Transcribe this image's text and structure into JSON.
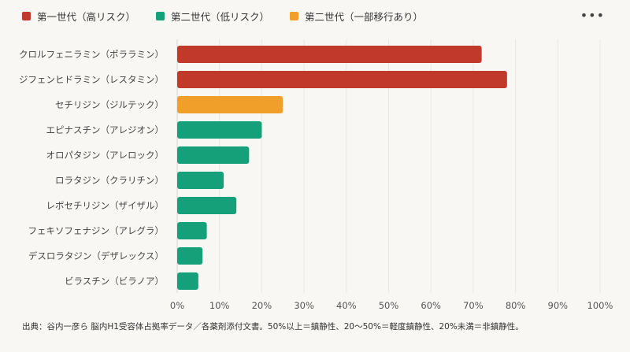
{
  "legend": [
    {
      "label": "第一世代（高リスク）",
      "color": "#c0392b"
    },
    {
      "label": "第二世代（低リスク）",
      "color": "#16a07a"
    },
    {
      "label": "第二世代（一部移行あり）",
      "color": "#f0a02a"
    }
  ],
  "menu_icon": "more-horizontal-icon",
  "chart_data": {
    "type": "bar",
    "orientation": "horizontal",
    "categories": [
      "クロルフェニラミン（ポララミン）",
      "ジフェンヒドラミン（レスタミン）",
      "セチリジン（ジルテック）",
      "エピナスチン（アレジオン）",
      "オロパタジン（アレロック）",
      "ロラタジン（クラリチン）",
      "レボセチリジン（ザイザル）",
      "フェキソフェナジン（アレグラ）",
      "デスロラタジン（デザレックス）",
      "ビラスチン（ビラノア）"
    ],
    "values": [
      72,
      78,
      25,
      20,
      17,
      11,
      14,
      7,
      6,
      5
    ],
    "groups": [
      0,
      0,
      2,
      1,
      1,
      1,
      1,
      1,
      1,
      1
    ],
    "xlim": [
      0,
      100
    ],
    "xticks": [
      "0%",
      "10%",
      "20%",
      "30%",
      "40%",
      "50%",
      "60%",
      "70%",
      "80%",
      "90%",
      "100%"
    ],
    "grid": true,
    "legend_position": "top-left"
  },
  "footnote": "出典：谷内一彦ら 脳内H1受容体占拠率データ／各薬剤添付文書。50%以上＝鎮静性、20〜50%＝軽度鎮静性、20%未満＝非鎮静性。"
}
